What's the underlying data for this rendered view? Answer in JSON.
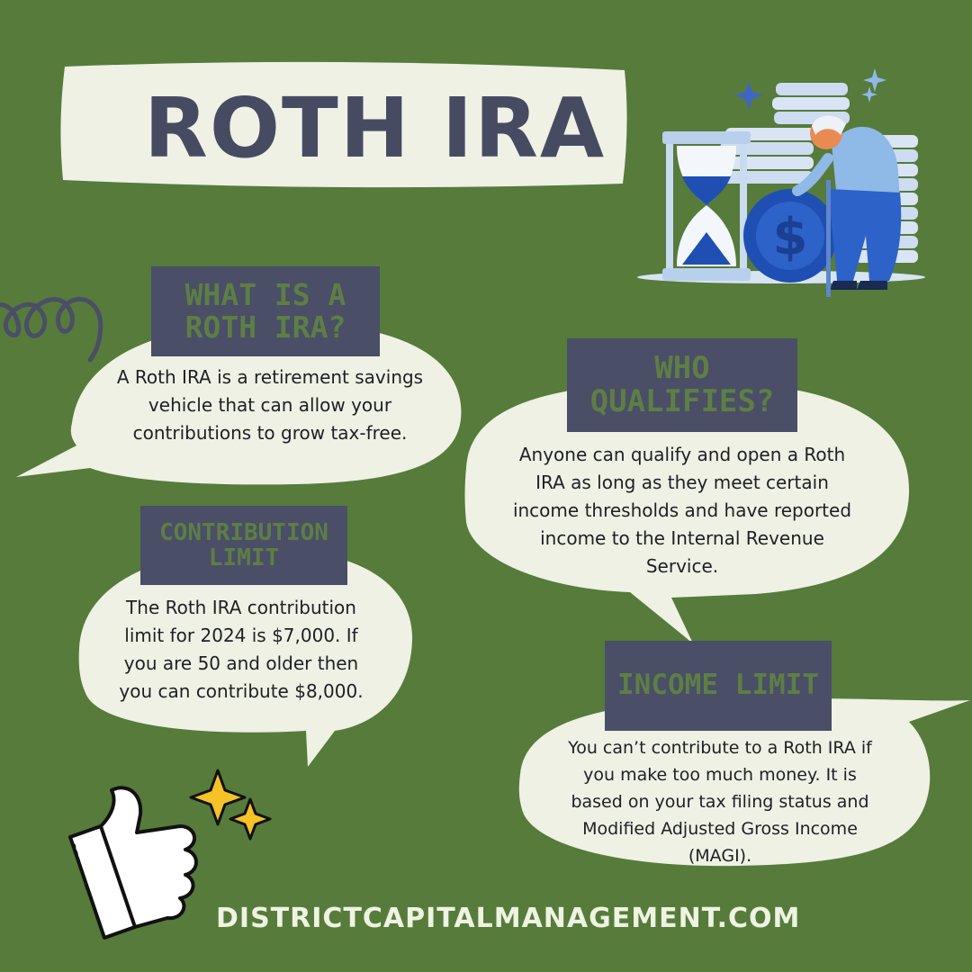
{
  "title": "ROTH IRA",
  "sections": [
    {
      "heading_line1": "WHAT IS A",
      "heading_line2": "ROTH IRA?",
      "body": "A Roth IRA is a retirement savings vehicle that can allow your contributions to grow tax-free."
    },
    {
      "heading_line1": "CONTRIBUTION",
      "heading_line2": "LIMIT",
      "body": "The Roth IRA contribution limit for 2024 is $7,000. If you are 50 and older then you can contribute $8,000."
    },
    {
      "heading_line1": "WHO",
      "heading_line2": "QUALIFIES?",
      "body": "Anyone can qualify and open a Roth IRA as long as they meet certain income thresholds and have reported income to the Internal Revenue Service."
    },
    {
      "heading_line1": "INCOME LIMIT",
      "body": "You can’t contribute to a Roth IRA if you make too much money. It is based on your tax filing status and Modified Adjusted Gross Income (MAGI)."
    }
  ],
  "footer": "DISTRICTCAPITALMANAGEMENT.COM",
  "colors": {
    "background": "#567b3b",
    "bubble": "#eef1e4",
    "heading_box": "#4a4e66",
    "heading_text": "#5d7e45",
    "title_text": "#474b62",
    "sparkle": "#f5c227"
  },
  "icons": [
    "scribble-icon",
    "retiree-hourglass-coins-illustration",
    "thumbs-up-icon",
    "sparkle-icon"
  ]
}
